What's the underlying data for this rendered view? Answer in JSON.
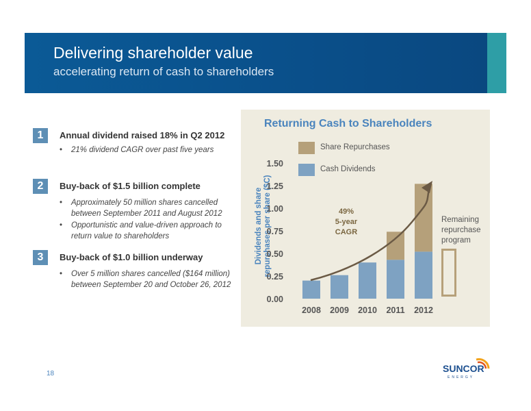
{
  "header": {
    "title": "Delivering shareholder value",
    "subtitle": "accelerating return of cash to shareholders"
  },
  "sections": [
    {
      "number": "1",
      "heading": "Annual dividend raised 18% in Q2 2012",
      "bullets": [
        "21% dividend CAGR over past five years"
      ]
    },
    {
      "number": "2",
      "heading": "Buy-back of $1.5 billion complete",
      "bullets": [
        "Approximately 50 million shares cancelled between September 2011 and August 2012",
        "Opportunistic and value-driven approach to return value to shareholders"
      ]
    },
    {
      "number": "3",
      "heading": "Buy-back of $1.0 billion underway",
      "bullets": [
        "Over 5 million shares cancelled ($164 million) between September 20 and October 26, 2012"
      ]
    }
  ],
  "bullet_char": "•",
  "chart_data": {
    "type": "bar",
    "title": "Returning Cash to Shareholders",
    "ylabel": "Dividends and share repurchases per share ($C)",
    "categories": [
      "2008",
      "2009",
      "2010",
      "2011",
      "2012"
    ],
    "series": [
      {
        "name": "Cash Dividends",
        "values": [
          0.2,
          0.26,
          0.4,
          0.43,
          0.52
        ]
      },
      {
        "name": "Share Repurchases",
        "values": [
          0,
          0,
          0,
          0.31,
          0.75
        ]
      }
    ],
    "stacked": true,
    "ylim": [
      0,
      1.5
    ],
    "yticks": [
      "0.00",
      "0.25",
      "0.50",
      "0.75",
      "1.00",
      "1.25",
      "1.50"
    ],
    "annotation": [
      "49%",
      "5-year",
      "CAGR"
    ],
    "remaining_label": [
      "Remaining",
      "repurchase",
      "program"
    ],
    "colors": {
      "dividends": "#7ea2c2",
      "repurchases": "#b5a07a",
      "arrow": "#6b5a45"
    }
  },
  "footer": {
    "page_number": "18",
    "logo_text": "SUNCOR",
    "logo_subtext": "ENERGY"
  }
}
